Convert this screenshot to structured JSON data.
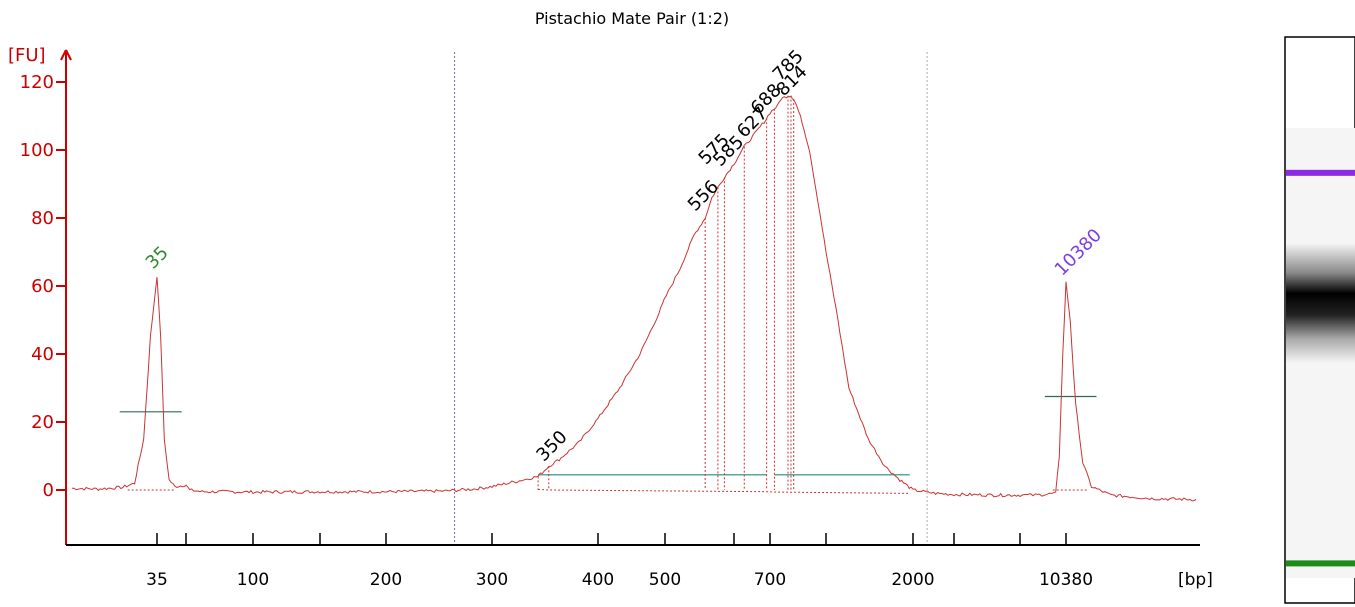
{
  "chart_data": {
    "type": "line",
    "title": "Pistachio Mate Pair (1:2)",
    "ylabel": "[FU]",
    "xlabel": "[bp]",
    "ylim": [
      -15,
      125
    ],
    "y_ticks": [
      0,
      20,
      40,
      60,
      80,
      100,
      120
    ],
    "x_tick_labels": [
      {
        "label": "35",
        "bp": 35
      },
      {
        "label": "100",
        "bp": 100
      },
      {
        "label": "200",
        "bp": 200
      },
      {
        "label": "300",
        "bp": 300
      },
      {
        "label": "400",
        "bp": 400
      },
      {
        "label": "500",
        "bp": 500
      },
      {
        "label": "700",
        "bp": 700
      },
      {
        "label": "2000",
        "bp": 2000
      },
      {
        "label": "10380",
        "bp": 10380
      }
    ],
    "x_major_ticks_bp": [
      35,
      40,
      100,
      150,
      200,
      300,
      400,
      500,
      600,
      700,
      1000,
      2000,
      3000,
      7000,
      10380
    ],
    "trace_color": "#cc3333",
    "axis_color": "#cc0000",
    "series": [
      {
        "points": [
          [
            28,
            0.5
          ],
          [
            30,
            0.3
          ],
          [
            32,
            0.8
          ],
          [
            33,
            2
          ],
          [
            33.8,
            15
          ],
          [
            34.4,
            45
          ],
          [
            35,
            63
          ],
          [
            35.6,
            45
          ],
          [
            36.2,
            15
          ],
          [
            37,
            3
          ],
          [
            38,
            1
          ],
          [
            40,
            1.5
          ],
          [
            42,
            0
          ],
          [
            50,
            -0.5
          ],
          [
            70,
            -0.5
          ],
          [
            100,
            -0.6
          ],
          [
            150,
            -0.5
          ],
          [
            200,
            -0.5
          ],
          [
            250,
            -0.3
          ],
          [
            280,
            0.3
          ],
          [
            300,
            1
          ],
          [
            320,
            2.5
          ],
          [
            340,
            4
          ],
          [
            350,
            7
          ],
          [
            360,
            9
          ],
          [
            380,
            14
          ],
          [
            400,
            21
          ],
          [
            430,
            30
          ],
          [
            460,
            40
          ],
          [
            490,
            52
          ],
          [
            520,
            65
          ],
          [
            540,
            75
          ],
          [
            556,
            80
          ],
          [
            566,
            86
          ],
          [
            575,
            89
          ],
          [
            585,
            92
          ],
          [
            600,
            96
          ],
          [
            627,
            101
          ],
          [
            650,
            104
          ],
          [
            688,
            109
          ],
          [
            700,
            111
          ],
          [
            735,
            113
          ],
          [
            750,
            115
          ],
          [
            785,
            116
          ],
          [
            800,
            116
          ],
          [
            814,
            115
          ],
          [
            830,
            113
          ],
          [
            860,
            108
          ],
          [
            900,
            100
          ],
          [
            950,
            85
          ],
          [
            1000,
            70
          ],
          [
            1100,
            50
          ],
          [
            1200,
            30
          ],
          [
            1400,
            15
          ],
          [
            1600,
            7
          ],
          [
            1800,
            3
          ],
          [
            2000,
            0
          ],
          [
            2500,
            -1
          ],
          [
            3000,
            -1.3
          ],
          [
            5000,
            -1.5
          ],
          [
            8000,
            -1.5
          ],
          [
            9500,
            -1
          ],
          [
            9800,
            10
          ],
          [
            10100,
            40
          ],
          [
            10380,
            61
          ],
          [
            10600,
            50
          ],
          [
            10900,
            25
          ],
          [
            11300,
            8
          ],
          [
            11800,
            1
          ],
          [
            13000,
            -1.5
          ],
          [
            16000,
            -2.5
          ],
          [
            20000,
            -2.8
          ]
        ]
      }
    ],
    "ladder_peaks": [
      {
        "label": "35",
        "bp": 35,
        "fu": 63,
        "color": "#2e8b2e"
      },
      {
        "label": "10380",
        "bp": 10380,
        "fu": 61,
        "color": "#7b3fe4"
      }
    ],
    "peak_labels": [
      {
        "label": "350",
        "bp": 350,
        "fu": 7
      },
      {
        "label": "556",
        "bp": 556,
        "fu": 80
      },
      {
        "label": "575",
        "bp": 575,
        "fu": 89
      },
      {
        "label": "585",
        "bp": 585,
        "fu": 92
      },
      {
        "label": "627",
        "bp": 627,
        "fu": 101
      },
      {
        "label": "688",
        "bp": 688,
        "fu": 109
      },
      {
        "label": "785",
        "bp": 785,
        "fu": 116
      },
      {
        "label": "814",
        "bp": 814,
        "fu": 115
      }
    ],
    "region_markers_bp": [
      260,
      2300
    ],
    "smear_regions": [
      {
        "from_bp": 340,
        "to_bp": 690,
        "fu": 4.5
      },
      {
        "from_bp": 720,
        "to_bp": 1950,
        "fu": 4.5
      }
    ],
    "ladder_bars": [
      {
        "bp": 35,
        "fu": 23,
        "half_width_bp_factor": 1.08
      },
      {
        "bp": 10380,
        "fu": 27.5,
        "half_width_bp_factor": 1.12
      }
    ],
    "gel_lane": {
      "bands": [
        {
          "position": 0.24,
          "color": "#8a2be2",
          "type": "marker"
        },
        {
          "position": 0.47,
          "color": "#000000",
          "type": "smear"
        },
        {
          "position": 0.93,
          "color": "#1a8c1a",
          "type": "marker"
        }
      ]
    }
  }
}
